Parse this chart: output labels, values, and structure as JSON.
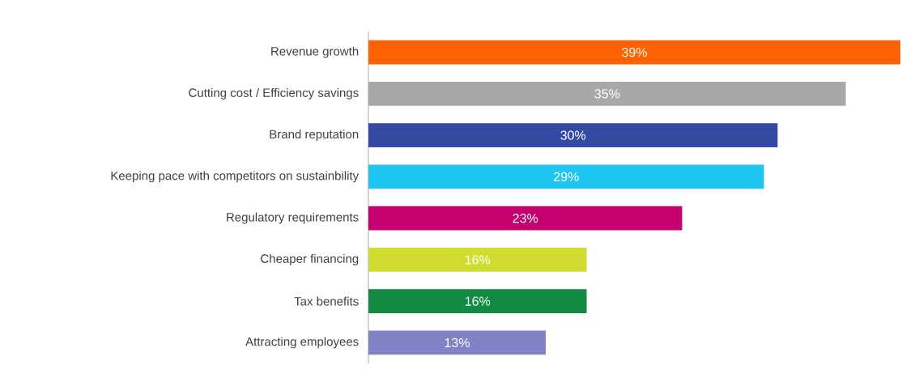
{
  "chart_data": {
    "type": "bar",
    "orientation": "horizontal",
    "categories": [
      "Revenue growth",
      "Cutting cost / Efficiency savings",
      "Brand reputation",
      "Keeping pace with competitors on sustainbility",
      "Regulatory requirements",
      "Cheaper financing",
      "Tax benefits",
      "Attracting employees"
    ],
    "values": [
      39,
      35,
      30,
      29,
      23,
      16,
      16,
      13
    ],
    "value_labels": [
      "39%",
      "35%",
      "30%",
      "29%",
      "23%",
      "16%",
      "16%",
      "13%"
    ],
    "colors": [
      "#ff6200",
      "#a8a8a8",
      "#344aa3",
      "#1ec6f0",
      "#c4006f",
      "#d0dc30",
      "#138a43",
      "#8082c4"
    ]
  }
}
